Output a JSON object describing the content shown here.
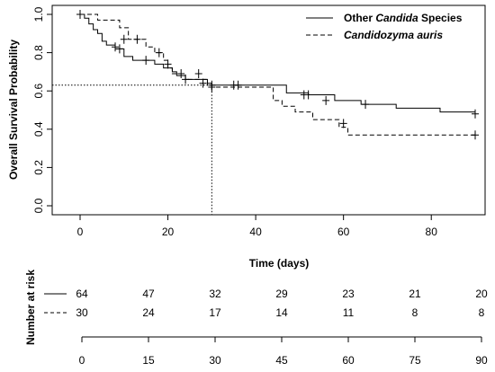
{
  "chart_data": {
    "type": "line",
    "ylabel": "Overall Survival Probability",
    "xlabel": "Time (days)",
    "xlim": [
      0,
      90
    ],
    "ylim": [
      0,
      1
    ],
    "x_ticks": [
      0,
      20,
      40,
      60,
      80
    ],
    "x_tick_labels": [
      "0",
      "20",
      "40",
      "60",
      "80"
    ],
    "y_ticks": [
      0.0,
      0.2,
      0.4,
      0.6,
      0.8,
      1.0
    ],
    "y_tick_labels": [
      "0.0",
      "0.2",
      "0.4",
      "0.6",
      "0.8",
      "1.0"
    ],
    "grid": false,
    "legend_position": "top-right",
    "legend": [
      {
        "prefix": "Other ",
        "italic": "Candida",
        "suffix": " Species",
        "style": "solid"
      },
      {
        "prefix": "",
        "italic": "Candidozyma auris",
        "suffix": "",
        "style": "dashed"
      }
    ],
    "median_reference": {
      "x": 30,
      "y": 0.63
    },
    "series": [
      {
        "style": "solid",
        "steps": [
          [
            0,
            1.0
          ],
          [
            1,
            0.98
          ],
          [
            2,
            0.95
          ],
          [
            3,
            0.92
          ],
          [
            4,
            0.9
          ],
          [
            5,
            0.86
          ],
          [
            6,
            0.84
          ],
          [
            8,
            0.82
          ],
          [
            10,
            0.78
          ],
          [
            12,
            0.76
          ],
          [
            17,
            0.74
          ],
          [
            19,
            0.72
          ],
          [
            21,
            0.7
          ],
          [
            22,
            0.68
          ],
          [
            24,
            0.66
          ],
          [
            29,
            0.64
          ],
          [
            30,
            0.63
          ],
          [
            47,
            0.59
          ],
          [
            52,
            0.58
          ],
          [
            58,
            0.55
          ],
          [
            64,
            0.53
          ],
          [
            72,
            0.51
          ],
          [
            82,
            0.49
          ],
          [
            90,
            0.48
          ]
        ],
        "censored": [
          [
            0,
            1.0
          ],
          [
            9,
            0.82
          ],
          [
            15,
            0.76
          ],
          [
            20,
            0.74
          ],
          [
            24,
            0.66
          ],
          [
            28,
            0.64
          ],
          [
            30,
            0.63
          ],
          [
            35,
            0.63
          ],
          [
            36,
            0.63
          ],
          [
            51,
            0.58
          ],
          [
            52,
            0.58
          ],
          [
            56,
            0.55
          ],
          [
            65,
            0.53
          ],
          [
            90,
            0.48
          ]
        ]
      },
      {
        "style": "dashed",
        "steps": [
          [
            0,
            1.0
          ],
          [
            2,
            1.0
          ],
          [
            4,
            0.97
          ],
          [
            9,
            0.93
          ],
          [
            11,
            0.87
          ],
          [
            15,
            0.83
          ],
          [
            17,
            0.8
          ],
          [
            19,
            0.76
          ],
          [
            20,
            0.72
          ],
          [
            21,
            0.69
          ],
          [
            24,
            0.66
          ],
          [
            29,
            0.62
          ],
          [
            30,
            0.62
          ],
          [
            44,
            0.55
          ],
          [
            46,
            0.52
          ],
          [
            49,
            0.49
          ],
          [
            53,
            0.45
          ],
          [
            59,
            0.41
          ],
          [
            61,
            0.37
          ],
          [
            90,
            0.37
          ]
        ],
        "censored": [
          [
            8,
            0.83
          ],
          [
            10,
            0.87
          ],
          [
            13,
            0.87
          ],
          [
            18,
            0.8
          ],
          [
            23,
            0.69
          ],
          [
            27,
            0.69
          ],
          [
            30,
            0.62
          ],
          [
            60,
            0.43
          ],
          [
            90,
            0.37
          ]
        ]
      }
    ],
    "risk_table": {
      "title": "Number at risk",
      "times": [
        0,
        15,
        30,
        45,
        60,
        75,
        90
      ],
      "time_labels": [
        "0",
        "15",
        "30",
        "45",
        "60",
        "75",
        "90"
      ],
      "rows": [
        {
          "style": "solid",
          "values": [
            "64",
            "47",
            "32",
            "29",
            "23",
            "21",
            "20"
          ]
        },
        {
          "style": "dashed",
          "values": [
            "30",
            "24",
            "17",
            "14",
            "11",
            "8",
            "8"
          ]
        }
      ]
    }
  }
}
